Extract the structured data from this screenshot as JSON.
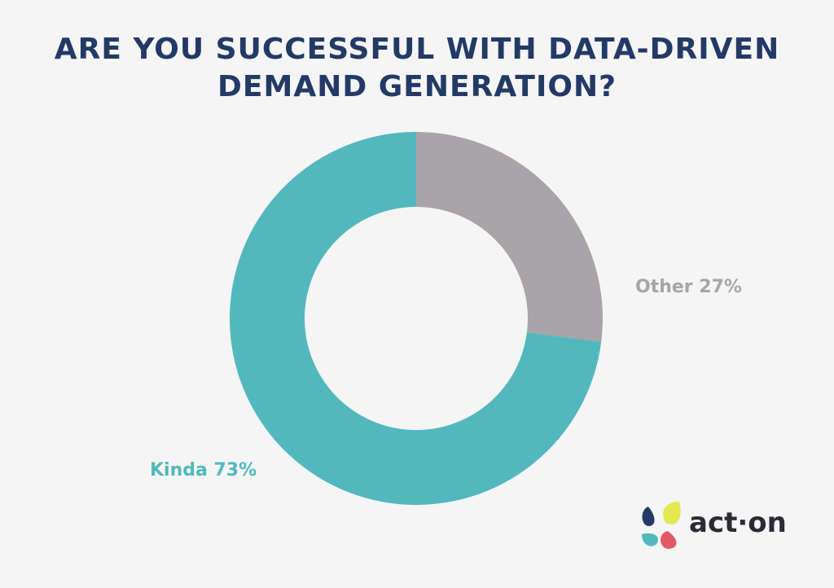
{
  "chart_data": {
    "type": "pie",
    "donut": true,
    "title": "ARE YOU SUCCESSFUL WITH DATA-DRIVEN DEMAND GENERATION?",
    "slices": [
      {
        "label": "Other 27%",
        "name": "Other",
        "value": 27,
        "color": "#a8a4a8"
      },
      {
        "label": "Kinda 73%",
        "name": "Kinda",
        "value": 73,
        "color": "#53b8be"
      }
    ]
  },
  "logo": {
    "text": "act·on",
    "colors": [
      "#233a66",
      "#e3e84e",
      "#53b8be",
      "#e05a6a"
    ]
  }
}
